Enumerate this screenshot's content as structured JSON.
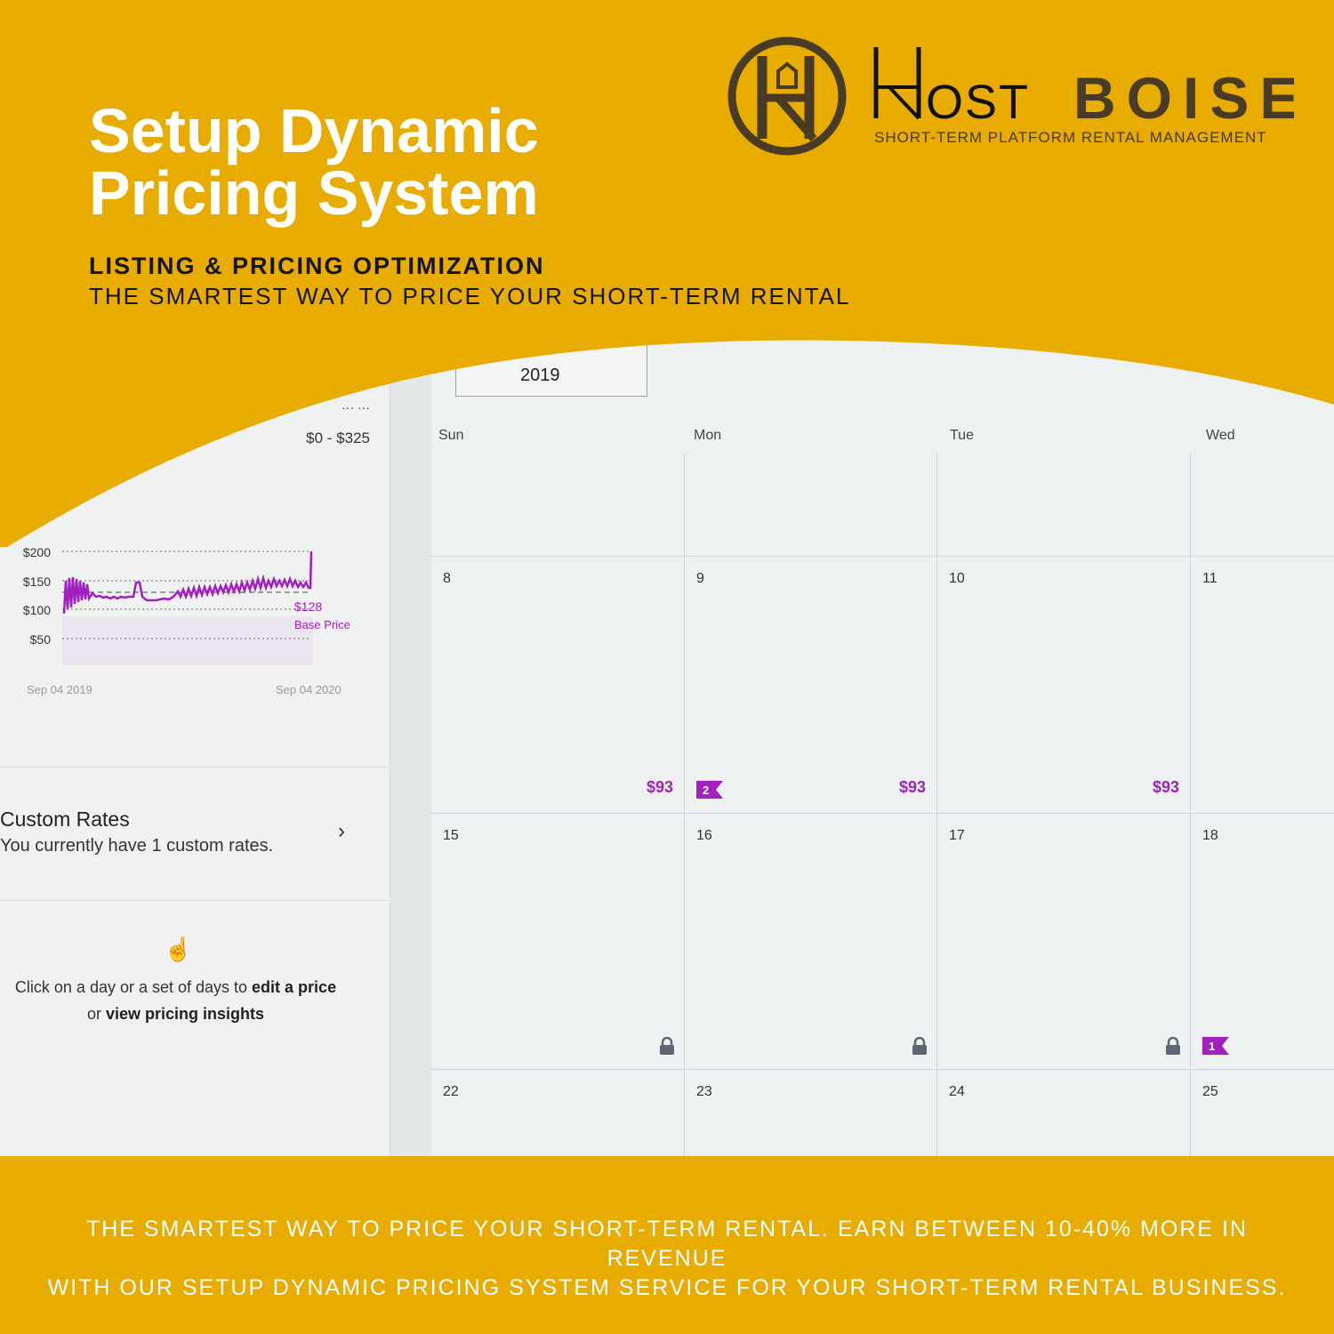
{
  "hero": {
    "title_line1": "Setup Dynamic",
    "title_line2": "Pricing System",
    "subtitle1": "LISTING & PRICING OPTIMIZATION",
    "subtitle2": "THE SMARTEST WAY TO PRICE YOUR SHORT-TERM RENTAL"
  },
  "logo": {
    "name": "HOST BOISE",
    "tagline": "SHORT-TERM PLATFORM RENTAL MANAGEMENT"
  },
  "screen": {
    "month_select_value": "2019",
    "range_label": "$0 - $325",
    "chart": {
      "y_ticks": [
        "$200",
        "$150",
        "$100",
        "$50"
      ],
      "base_price_value": "$128",
      "base_price_label": "Base Price",
      "x_start": "Sep 04 2019",
      "x_end": "Sep 04 2020"
    },
    "custom_rates": {
      "title": "Custom Rates",
      "subtitle": "You currently have 1 custom rates."
    },
    "hint": {
      "part1": "Click on a day or a set of days to ",
      "bold1": "edit a price",
      "part2": "or ",
      "bold2": "view pricing insights"
    },
    "calendar": {
      "days_of_week": [
        "Sun",
        "Mon",
        "Tue",
        "Wed"
      ],
      "rows": [
        [
          {
            "day": ""
          },
          {
            "day": ""
          },
          {
            "day": ""
          },
          {
            "day": ""
          }
        ],
        [
          {
            "day": "8",
            "price": "$93"
          },
          {
            "day": "9",
            "price": "$93",
            "flag": "2"
          },
          {
            "day": "10",
            "price": "$93"
          },
          {
            "day": "11"
          }
        ],
        [
          {
            "day": "15",
            "lock": true
          },
          {
            "day": "16",
            "lock": true
          },
          {
            "day": "17",
            "lock": true
          },
          {
            "day": "18",
            "flag": "1"
          }
        ],
        [
          {
            "day": "22"
          },
          {
            "day": "23"
          },
          {
            "day": "24"
          },
          {
            "day": "25"
          }
        ]
      ]
    }
  },
  "footer": {
    "line1": "THE SMARTEST WAY TO PRICE YOUR SHORT-TERM RENTAL. EARN BETWEEN 10-40% MORE IN REVENUE",
    "line2": "WITH OUR SETUP DYNAMIC PRICING SYSTEM SERVICE FOR YOUR SHORT-TERM RENTAL BUSINESS."
  },
  "colors": {
    "brand_yellow": "#E8AB00",
    "accent_purple": "#A21FC0",
    "logo_brown": "#4A3B24"
  }
}
